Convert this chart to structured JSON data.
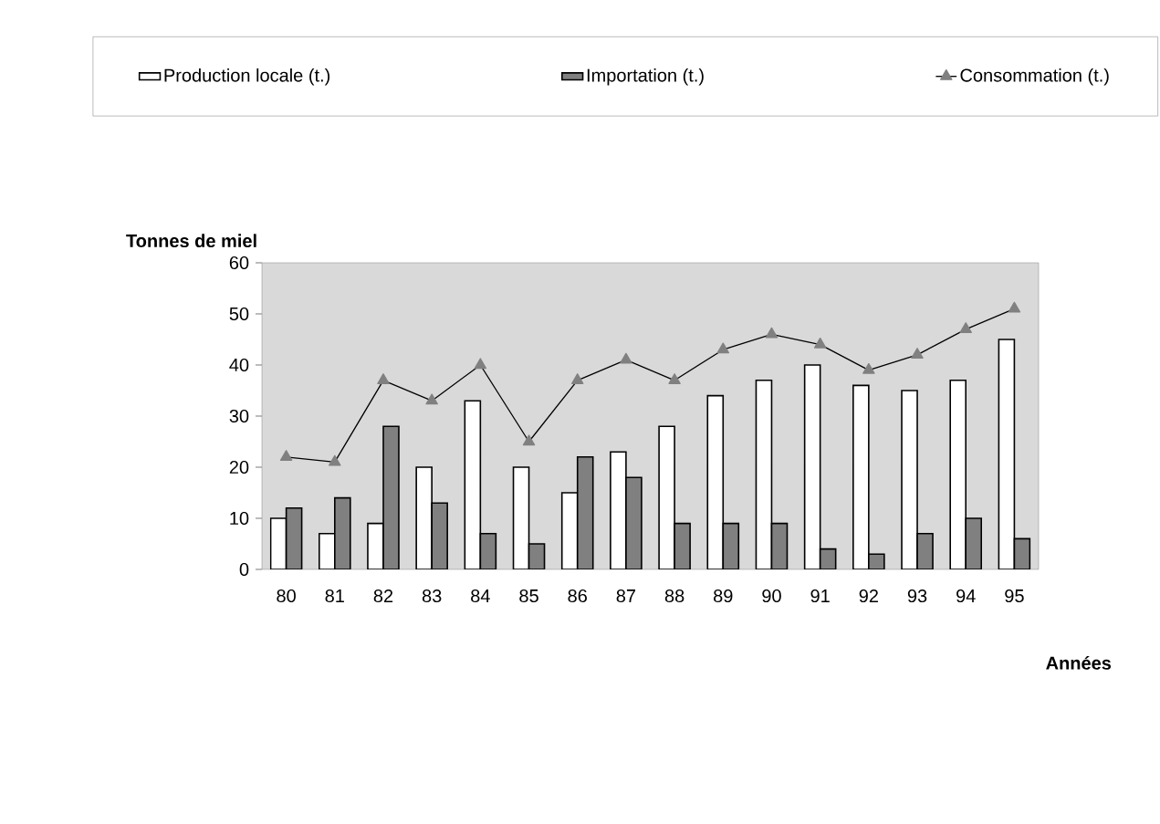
{
  "chart_data": {
    "type": "bar",
    "ylabel": "Tonnes de miel",
    "xlabel": "Années",
    "legend": "top",
    "marker": "triangle",
    "ylim": [
      0,
      60
    ],
    "yticks": [
      0,
      10,
      20,
      30,
      40,
      50,
      60
    ],
    "categories": [
      "80",
      "81",
      "82",
      "83",
      "84",
      "85",
      "86",
      "87",
      "88",
      "89",
      "90",
      "91",
      "92",
      "93",
      "94",
      "95"
    ],
    "series": [
      {
        "name": "Production locale (t.)",
        "color": "#ffffff",
        "values": [
          10,
          7,
          9,
          20,
          33,
          20,
          15,
          23,
          28,
          34,
          37,
          40,
          36,
          35,
          37,
          45
        ]
      },
      {
        "name": "Importation (t.)",
        "color": "#808080",
        "values": [
          12,
          14,
          28,
          13,
          7,
          5,
          22,
          18,
          9,
          9,
          9,
          4,
          3,
          7,
          10,
          6
        ]
      },
      {
        "name": "Consommation (t.)",
        "type": "line",
        "color": "#808080",
        "values": [
          22,
          21,
          37,
          33,
          40,
          25,
          37,
          41,
          37,
          43,
          46,
          44,
          39,
          42,
          47,
          51
        ]
      }
    ]
  }
}
